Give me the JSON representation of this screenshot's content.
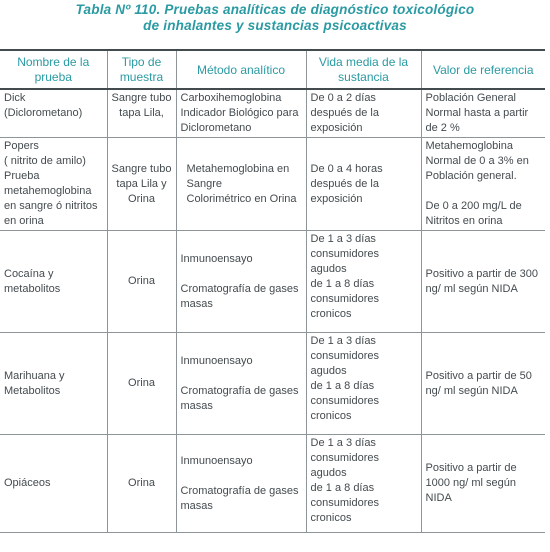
{
  "caption": {
    "line1": "Tabla Nº 110. Pruebas analíticas de diagnóstico toxicológico",
    "line2": "de inhalantes y sustancias psicoactivas"
  },
  "headers": [
    "Nombre de la prueba",
    "Tipo de muestra",
    "Método analítico",
    "Vida media de la sustancia",
    "Valor de referencia"
  ],
  "rows": [
    {
      "nombre": "Dick\n(Diclorometano)",
      "muestra": "Sangre tubo tapa Lila,",
      "metodo": "Carboxihemoglobina Indicador Biológico para Diclorometano",
      "vida": "De 0 a 2 días después de la exposición",
      "valor": "Población General Normal hasta a partir de 2 %"
    },
    {
      "nombre": "Popers\n( nitrito de amilo)\nPrueba metahemoglobina en sangre ó nitritos en orina",
      "muestra": "Sangre tubo tapa Lila y Orina",
      "metodo": "Metahemoglobina en Sangre\nColorimétrico en Orina",
      "vida": "De 0 a 4 horas después de la exposición",
      "valor_a": "Metahemoglobina Normal de 0 a 3% en Población general.",
      "valor_b": "De 0 a 200 mg/L de Nitritos en orina"
    },
    {
      "nombre": "Cocaína y metabolitos",
      "muestra": "Orina",
      "metodo_a": "Inmunoensayo",
      "metodo_b": "Cromatografía de gases masas",
      "vida_a": "De 1 a 3 días consumidores agudos",
      "vida_b": "de 1 a 8 días consumidores cronicos",
      "valor": "Positivo a partir de 300 ng/ ml según NIDA"
    },
    {
      "nombre": "Marihuana y Metabolitos",
      "muestra": "Orina",
      "metodo_a": "Inmunoensayo",
      "metodo_b": "Cromatografía de gases masas",
      "vida_a": "De 1 a 3 días consumidores agudos",
      "vida_b": "de 1 a 8 días consumidores cronicos",
      "valor": "Positivo a partir de 50 ng/ ml según NIDA"
    },
    {
      "nombre": "Opiáceos",
      "muestra": "Orina",
      "metodo_a": "Inmunoensayo",
      "metodo_b": "Cromatografía de gases masas",
      "vida_a": "De 1 a 3 días consumidores agudos",
      "vida_b": "de 1 a 8 días consumidores cronicos",
      "valor": "Positivo a partir de 1000 ng/ ml según NIDA"
    }
  ]
}
